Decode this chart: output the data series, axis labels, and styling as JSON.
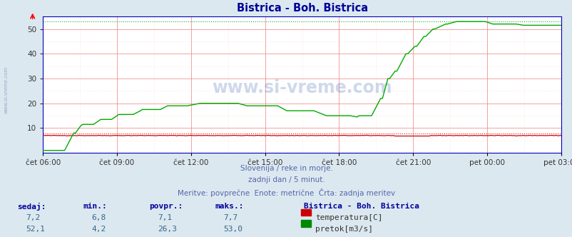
{
  "title": "Bistrica - Boh. Bistrica",
  "bg_color": "#dce8f0",
  "plot_bg_color": "#ffffff",
  "grid_color": "#f08080",
  "minor_grid_color": "#ffd0d0",
  "x_labels": [
    "čet 06:00",
    "čet 09:00",
    "čet 12:00",
    "čet 15:00",
    "čet 18:00",
    "čet 21:00",
    "pet 00:00",
    "pet 03:00"
  ],
  "ylim_min": 0,
  "ylim_max": 55,
  "yticks": [
    10,
    20,
    30,
    40,
    50
  ],
  "footer_line1": "Slovenija / reke in morje.",
  "footer_line2": "zadnji dan / 5 minut.",
  "footer_line3": "Meritve: povprečne  Enote: metrične  Črta: zadnja meritev",
  "table_headers": [
    "sedaj:",
    "min.:",
    "povpr.:",
    "maks.:"
  ],
  "table_row1": [
    "7,2",
    "6,8",
    "7,1",
    "7,7"
  ],
  "table_row2": [
    "52,1",
    "4,2",
    "26,3",
    "53,0"
  ],
  "legend_label1": "temperatura[C]",
  "legend_label2": "pretok[m3/s]",
  "legend_color1": "#cc0000",
  "legend_color2": "#008800",
  "station_label": "Bistrica - Boh. Bistrica",
  "temp_color": "#cc0000",
  "flow_color": "#00aa00",
  "temp_max": 7.7,
  "flow_max": 53.0,
  "watermark": "www.si-vreme.com",
  "title_color": "#000099",
  "footer_color": "#5566aa",
  "table_header_color": "#000099",
  "table_val_color": "#336688"
}
